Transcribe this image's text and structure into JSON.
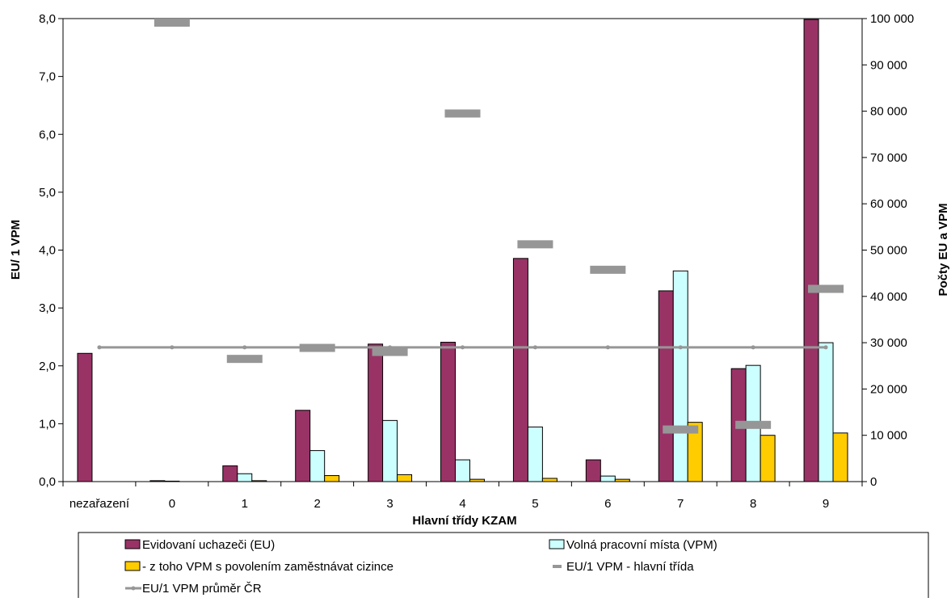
{
  "chart_data": {
    "type": "bar",
    "categories": [
      "nezařazení",
      "0",
      "1",
      "2",
      "3",
      "4",
      "5",
      "6",
      "7",
      "8",
      "9"
    ],
    "xlabel": "Hlavní třídy KZAM",
    "ylabel_left": "EU/ 1 VPM",
    "ylabel_right": "Počty EU a VPM",
    "ylim_left": [
      0,
      8
    ],
    "ylim_right": [
      0,
      100000
    ],
    "left_ticks": [
      "0,0",
      "1,0",
      "2,0",
      "3,0",
      "4,0",
      "5,0",
      "6,0",
      "7,0",
      "8,0"
    ],
    "right_ticks": [
      "0",
      "10 000",
      "20 000",
      "30 000",
      "40 000",
      "50 000",
      "60 000",
      "70 000",
      "80 000",
      "90 000",
      "100 000"
    ],
    "series": [
      {
        "name": "Evidovaní uchazeči (EU)",
        "axis": "right",
        "kind": "bar",
        "color": "#993366",
        "values": [
          27700,
          200,
          3400,
          15400,
          29700,
          30100,
          48200,
          4700,
          41200,
          24400,
          99800
        ]
      },
      {
        "name": "Volná pracovní místa (VPM)",
        "axis": "right",
        "kind": "bar",
        "color": "#ccffff",
        "values": [
          0,
          100,
          1700,
          6700,
          13200,
          4700,
          11800,
          1200,
          45500,
          25100,
          30000
        ]
      },
      {
        "name": "- z toho VPM s povolením zaměstnávat cizince",
        "axis": "right",
        "kind": "bar",
        "color": "#ffcc00",
        "values": [
          0,
          0,
          200,
          1300,
          1500,
          500,
          700,
          500,
          12800,
          10000,
          10500
        ]
      },
      {
        "name": "EU/1 VPM - hlavní třída",
        "axis": "left",
        "kind": "dash",
        "color": "#969696",
        "values": [
          null,
          7.93,
          2.12,
          2.31,
          2.24,
          6.36,
          4.1,
          3.66,
          0.9,
          0.98,
          3.33
        ]
      },
      {
        "name": "EU/1 VPM průměr ČR",
        "axis": "left",
        "kind": "line",
        "color": "#969696",
        "values": [
          2.32,
          2.32,
          2.32,
          2.32,
          2.32,
          2.32,
          2.32,
          2.32,
          2.32,
          2.32,
          2.32
        ]
      }
    ],
    "legend": "bottom",
    "grid": false
  }
}
